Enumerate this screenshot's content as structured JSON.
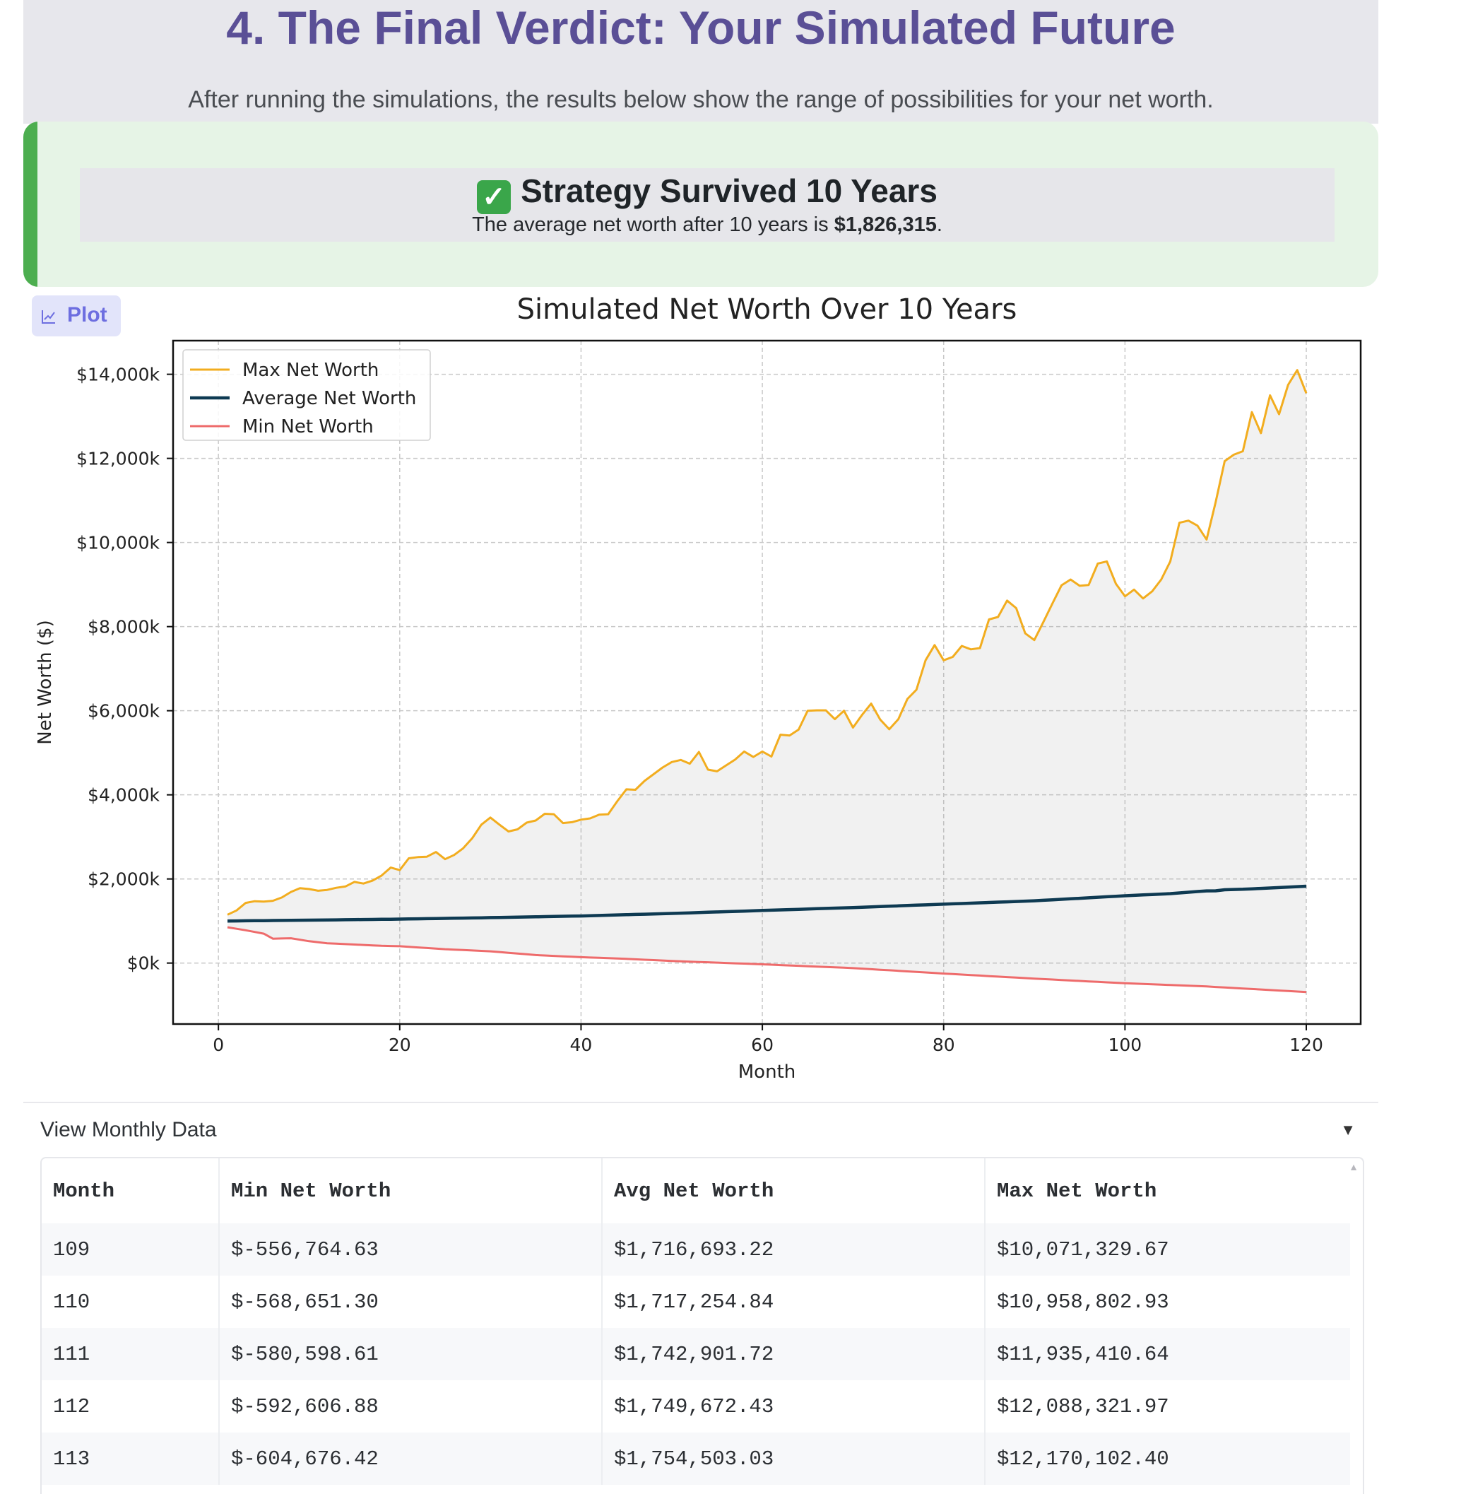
{
  "header": {
    "title": "4. The Final Verdict: Your Simulated Future",
    "subtitle": "After running the simulations, the results below show the range of possibilities for your net worth."
  },
  "verdict": {
    "headline": "Strategy Survived 10 Years",
    "body_prefix": "The average net worth after 10 years is ",
    "body_value": "$1,826,315",
    "body_suffix": ".",
    "icon": "check-mark-icon",
    "accent_color": "#4cae4f"
  },
  "plot_tab": {
    "label": "Plot",
    "icon": "chart-icon"
  },
  "chart_data": {
    "type": "line",
    "title": "Simulated Net Worth Over 10 Years",
    "xlabel": "Month",
    "ylabel": "Net Worth ($)",
    "xlim": [
      -5,
      126
    ],
    "ylim": [
      -1450000,
      14800000
    ],
    "xticks": [
      0,
      20,
      40,
      60,
      80,
      100,
      120
    ],
    "yticks": [
      0,
      2000000,
      4000000,
      6000000,
      8000000,
      10000000,
      12000000,
      14000000
    ],
    "ytick_labels": [
      "$0k",
      "$2,000k",
      "$4,000k",
      "$6,000k",
      "$8,000k",
      "$10,000k",
      "$12,000k",
      "$14,000k"
    ],
    "grid": true,
    "legend_position": "top-left",
    "fill_between": [
      "Min Net Worth",
      "Max Net Worth"
    ],
    "series": [
      {
        "name": "Max Net Worth",
        "color": "#f2ad1f",
        "anchors": [
          [
            1,
            1150000
          ],
          [
            2,
            1250000
          ],
          [
            3,
            1430000
          ],
          [
            4,
            1470000
          ],
          [
            5,
            1460000
          ],
          [
            6,
            1480000
          ],
          [
            7,
            1560000
          ],
          [
            8,
            1690000
          ],
          [
            9,
            1780000
          ],
          [
            10,
            1760000
          ],
          [
            11,
            1720000
          ],
          [
            12,
            1740000
          ],
          [
            13,
            1790000
          ],
          [
            14,
            1820000
          ],
          [
            15,
            1930000
          ],
          [
            16,
            1890000
          ],
          [
            17,
            1960000
          ],
          [
            18,
            2080000
          ],
          [
            19,
            2270000
          ],
          [
            20,
            2210000
          ],
          [
            21,
            2490000
          ],
          [
            22,
            2520000
          ],
          [
            23,
            2530000
          ],
          [
            24,
            2640000
          ],
          [
            25,
            2470000
          ],
          [
            26,
            2570000
          ],
          [
            27,
            2730000
          ],
          [
            28,
            2970000
          ],
          [
            29,
            3290000
          ],
          [
            30,
            3460000
          ],
          [
            31,
            3290000
          ],
          [
            32,
            3130000
          ],
          [
            33,
            3180000
          ],
          [
            34,
            3340000
          ],
          [
            35,
            3390000
          ],
          [
            36,
            3550000
          ],
          [
            37,
            3540000
          ],
          [
            38,
            3330000
          ],
          [
            39,
            3350000
          ],
          [
            40,
            3410000
          ],
          [
            41,
            3440000
          ],
          [
            42,
            3530000
          ],
          [
            43,
            3540000
          ],
          [
            44,
            3850000
          ],
          [
            45,
            4130000
          ],
          [
            46,
            4120000
          ],
          [
            47,
            4330000
          ],
          [
            48,
            4490000
          ],
          [
            49,
            4650000
          ],
          [
            50,
            4780000
          ],
          [
            51,
            4830000
          ],
          [
            52,
            4740000
          ],
          [
            53,
            5020000
          ],
          [
            54,
            4600000
          ],
          [
            55,
            4560000
          ],
          [
            56,
            4700000
          ],
          [
            57,
            4840000
          ],
          [
            58,
            5030000
          ],
          [
            59,
            4900000
          ],
          [
            60,
            5030000
          ],
          [
            61,
            4910000
          ],
          [
            62,
            5430000
          ],
          [
            63,
            5410000
          ],
          [
            64,
            5550000
          ],
          [
            65,
            6000000
          ],
          [
            66,
            6010000
          ],
          [
            67,
            6010000
          ],
          [
            68,
            5800000
          ],
          [
            69,
            6000000
          ],
          [
            70,
            5600000
          ],
          [
            71,
            5900000
          ],
          [
            72,
            6170000
          ],
          [
            73,
            5790000
          ],
          [
            74,
            5560000
          ],
          [
            75,
            5800000
          ],
          [
            76,
            6280000
          ],
          [
            77,
            6500000
          ],
          [
            78,
            7200000
          ],
          [
            79,
            7560000
          ],
          [
            80,
            7200000
          ],
          [
            81,
            7280000
          ],
          [
            82,
            7540000
          ],
          [
            83,
            7460000
          ],
          [
            84,
            7490000
          ],
          [
            85,
            8170000
          ],
          [
            86,
            8230000
          ],
          [
            87,
            8620000
          ],
          [
            88,
            8440000
          ],
          [
            89,
            7840000
          ],
          [
            90,
            7680000
          ],
          [
            91,
            8110000
          ],
          [
            92,
            8550000
          ],
          [
            93,
            8980000
          ],
          [
            94,
            9120000
          ],
          [
            95,
            8970000
          ],
          [
            96,
            8990000
          ],
          [
            97,
            9500000
          ],
          [
            98,
            9550000
          ],
          [
            99,
            9020000
          ],
          [
            100,
            8720000
          ],
          [
            101,
            8880000
          ],
          [
            102,
            8670000
          ],
          [
            103,
            8840000
          ],
          [
            104,
            9120000
          ],
          [
            105,
            9550000
          ],
          [
            106,
            10470000
          ],
          [
            107,
            10520000
          ],
          [
            108,
            10400000
          ],
          [
            109,
            10071330
          ],
          [
            110,
            10958803
          ],
          [
            111,
            11935411
          ],
          [
            112,
            12088322
          ],
          [
            113,
            12170102
          ],
          [
            114,
            13100000
          ],
          [
            115,
            12600000
          ],
          [
            116,
            13500000
          ],
          [
            117,
            13050000
          ],
          [
            118,
            13750000
          ],
          [
            119,
            14100000
          ],
          [
            120,
            13550000
          ]
        ]
      },
      {
        "name": "Average Net Worth",
        "color": "#0e3a52",
        "anchors": [
          [
            1,
            1000000
          ],
          [
            10,
            1020000
          ],
          [
            20,
            1045000
          ],
          [
            30,
            1080000
          ],
          [
            40,
            1120000
          ],
          [
            50,
            1180000
          ],
          [
            60,
            1250000
          ],
          [
            70,
            1320000
          ],
          [
            80,
            1400000
          ],
          [
            90,
            1480000
          ],
          [
            100,
            1600000
          ],
          [
            105,
            1650000
          ],
          [
            109,
            1716693
          ],
          [
            110,
            1717255
          ],
          [
            111,
            1742902
          ],
          [
            112,
            1749672
          ],
          [
            113,
            1754503
          ],
          [
            120,
            1826315
          ]
        ]
      },
      {
        "name": "Min Net Worth",
        "color": "#ee6b6b",
        "anchors": [
          [
            1,
            850000
          ],
          [
            3,
            780000
          ],
          [
            5,
            700000
          ],
          [
            6,
            580000
          ],
          [
            8,
            590000
          ],
          [
            10,
            520000
          ],
          [
            12,
            470000
          ],
          [
            15,
            440000
          ],
          [
            18,
            410000
          ],
          [
            20,
            400000
          ],
          [
            25,
            330000
          ],
          [
            30,
            280000
          ],
          [
            35,
            190000
          ],
          [
            40,
            140000
          ],
          [
            45,
            100000
          ],
          [
            50,
            50000
          ],
          [
            60,
            -30000
          ],
          [
            70,
            -120000
          ],
          [
            80,
            -250000
          ],
          [
            90,
            -370000
          ],
          [
            100,
            -480000
          ],
          [
            109,
            -556765
          ],
          [
            110,
            -568651
          ],
          [
            111,
            -580599
          ],
          [
            112,
            -592607
          ],
          [
            113,
            -604676
          ],
          [
            120,
            -690000
          ]
        ]
      }
    ]
  },
  "expander": {
    "label": "View Monthly Data",
    "arrow": "▼"
  },
  "table": {
    "columns": [
      "Month",
      "Min Net Worth",
      "Avg Net Worth",
      "Max Net Worth"
    ],
    "rows": [
      [
        "109",
        "$-556,764.63",
        "$1,716,693.22",
        "$10,071,329.67"
      ],
      [
        "110",
        "$-568,651.30",
        "$1,717,254.84",
        "$10,958,802.93"
      ],
      [
        "111",
        "$-580,598.61",
        "$1,742,901.72",
        "$11,935,410.64"
      ],
      [
        "112",
        "$-592,606.88",
        "$1,749,672.43",
        "$12,088,321.97"
      ],
      [
        "113",
        "$-604,676.42",
        "$1,754,503.03",
        "$12,170,102.40"
      ]
    ]
  }
}
